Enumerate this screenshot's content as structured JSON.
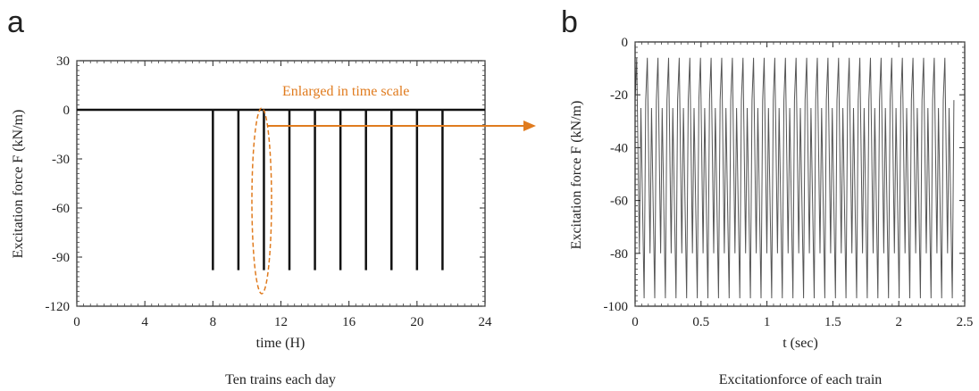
{
  "panels": {
    "a": {
      "letter": "a",
      "caption": "Ten trains each day"
    },
    "b": {
      "letter": "b",
      "caption": "Excitationforce of each train"
    }
  },
  "colors": {
    "accent": "#e07b1e",
    "ink": "#222222",
    "wave": "#555555"
  },
  "chart_data": [
    {
      "type": "bar",
      "panel": "a",
      "xlabel": "time (H)",
      "ylabel": "Excitation force F (kN/m)",
      "xlim": [
        0,
        24
      ],
      "ylim": [
        -120,
        30
      ],
      "xticks": [
        0,
        4,
        8,
        12,
        16,
        20,
        24
      ],
      "yticks": [
        30,
        0,
        -30,
        -60,
        -90,
        -120
      ],
      "baseline": 0,
      "x": [
        8,
        9.5,
        11,
        12.5,
        14,
        15.5,
        17,
        18.5,
        20,
        21.5
      ],
      "values": [
        -98,
        -98,
        -98,
        -98,
        -98,
        -98,
        -98,
        -98,
        -98,
        -98
      ],
      "annotation": {
        "text": "Enlarged in time scale",
        "x": 11
      }
    },
    {
      "type": "line",
      "panel": "b",
      "xlabel": "t (sec)",
      "ylabel": "Excitation force F (kN/m)",
      "xlim": [
        0,
        2.5
      ],
      "ylim": [
        -100,
        0
      ],
      "xticks": [
        0,
        0.5,
        1,
        1.5,
        2,
        2.5
      ],
      "yticks": [
        0,
        -20,
        -40,
        -60,
        -80,
        -100
      ],
      "series": [
        {
          "x_range": [
            0,
            2.42
          ],
          "period": 0.0806,
          "peaks": [
            -6,
            -22
          ],
          "troughs": [
            -97,
            -80
          ]
        }
      ]
    }
  ]
}
